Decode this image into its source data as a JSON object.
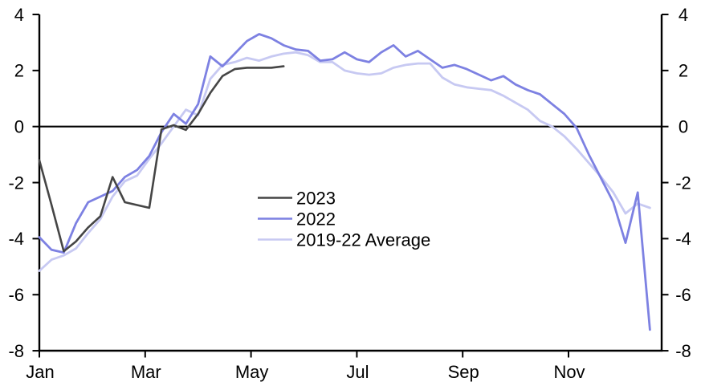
{
  "chart_data": {
    "type": "line",
    "description": "Seasonal line chart comparing 2023, 2022 and the 2019-22 average; weekly values, y from -8 to 4 with mirrored right axis and a bold zero line.",
    "x_axis": {
      "tick_labels": [
        "Jan",
        "Mar",
        "May",
        "Jul",
        "Sep",
        "Nov"
      ],
      "tick_positions_months": [
        0,
        2,
        4,
        6,
        8,
        10
      ],
      "range_months": [
        0,
        11.76
      ],
      "point_spacing": "weekly"
    },
    "y_axis": {
      "tick_values": [
        4,
        2,
        0,
        -2,
        -4,
        -6,
        -8
      ],
      "range": [
        -8,
        4
      ],
      "mirrored_right_axis": true,
      "zero_line": true
    },
    "grid": "off",
    "legend_position": "inside-center-left",
    "series": [
      {
        "name": "2023",
        "color": "#454545",
        "x_start_week": 0,
        "values": [
          -1.2,
          -2.8,
          -4.45,
          -4.1,
          -3.6,
          -3.2,
          -1.8,
          -2.7,
          -2.8,
          -2.9,
          -0.1,
          0.05,
          -0.12,
          0.45,
          1.2,
          1.8,
          2.05,
          2.1,
          2.1,
          2.1,
          2.15
        ]
      },
      {
        "name": "2022",
        "color": "#7d81e2",
        "x_start_week": 0,
        "values": [
          -3.95,
          -4.4,
          -4.5,
          -3.45,
          -2.7,
          -2.5,
          -2.3,
          -1.8,
          -1.55,
          -1.05,
          -0.2,
          0.45,
          0.1,
          0.8,
          2.5,
          2.15,
          2.6,
          3.05,
          3.3,
          3.15,
          2.9,
          2.75,
          2.7,
          2.35,
          2.4,
          2.65,
          2.4,
          2.3,
          2.65,
          2.9,
          2.5,
          2.7,
          2.4,
          2.1,
          2.2,
          2.05,
          1.85,
          1.65,
          1.8,
          1.5,
          1.3,
          1.15,
          0.8,
          0.45,
          -0.05,
          -1.0,
          -1.85,
          -2.7,
          -4.15,
          -2.35,
          -7.25
        ]
      },
      {
        "name": "2019-22 Average",
        "color": "#c7c9f2",
        "x_start_week": 0,
        "values": [
          -5.15,
          -4.75,
          -4.6,
          -4.35,
          -3.8,
          -3.3,
          -2.5,
          -1.95,
          -1.75,
          -1.15,
          -0.6,
          0.0,
          0.6,
          0.4,
          1.7,
          2.2,
          2.3,
          2.45,
          2.35,
          2.5,
          2.6,
          2.65,
          2.55,
          2.3,
          2.3,
          2.0,
          1.9,
          1.85,
          1.9,
          2.1,
          2.2,
          2.25,
          2.25,
          1.75,
          1.5,
          1.4,
          1.35,
          1.3,
          1.1,
          0.85,
          0.6,
          0.2,
          0.0,
          -0.35,
          -0.8,
          -1.3,
          -1.8,
          -2.35,
          -3.1,
          -2.75,
          -2.9
        ]
      }
    ],
    "axis_color": "#000000"
  }
}
